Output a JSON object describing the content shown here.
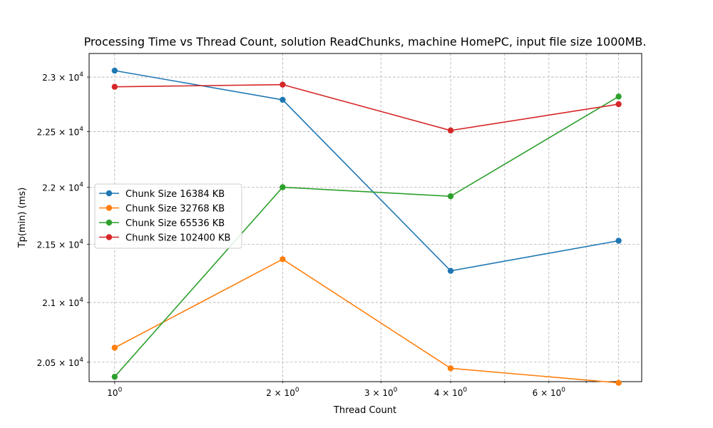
{
  "chart_data": {
    "type": "line",
    "title": "Processing Time vs Thread Count, solution ReadChunks, machine HomePC, input file size 1000MB.",
    "xlabel": "Thread Count",
    "ylabel": "Tp(min) (ms)",
    "xscale": "log",
    "yscale": "log",
    "grid": true,
    "legend_position": "center-left",
    "xlim": [
      0.9,
      8.8
    ],
    "ylim": [
      20340,
      23220
    ],
    "x": [
      1,
      2,
      4,
      8
    ],
    "xticks": [
      {
        "value": 1,
        "label": "10",
        "exp": "0",
        "prefix": ""
      },
      {
        "value": 2,
        "label": "2 × 10",
        "exp": "0",
        "prefix": "2 × "
      },
      {
        "value": 3,
        "label": "3 × 10",
        "exp": "0",
        "prefix": "3 × "
      },
      {
        "value": 4,
        "label": "4 × 10",
        "exp": "0",
        "prefix": "4 × "
      },
      {
        "value": 6,
        "label": "6 × 10",
        "exp": "0",
        "prefix": "6 × "
      }
    ],
    "xminor": [
      5,
      7,
      8
    ],
    "yticks": [
      {
        "value": 20500,
        "mant": "2.05 × 10",
        "exp": "4"
      },
      {
        "value": 21000,
        "mant": "2.1 × 10",
        "exp": "4"
      },
      {
        "value": 21500,
        "mant": "2.15 × 10",
        "exp": "4"
      },
      {
        "value": 22000,
        "mant": "2.2 × 10",
        "exp": "4"
      },
      {
        "value": 22500,
        "mant": "2.25 × 10",
        "exp": "4"
      },
      {
        "value": 23000,
        "mant": "2.3 × 10",
        "exp": "4"
      }
    ],
    "series": [
      {
        "name": "Chunk Size 16384 KB",
        "color": "#1f77b4",
        "values": [
          23060,
          22790,
          21270,
          21530
        ]
      },
      {
        "name": "Chunk Size 32768 KB",
        "color": "#ff7f0e",
        "values": [
          20620,
          21370,
          20450,
          20330
        ]
      },
      {
        "name": "Chunk Size 65536 KB",
        "color": "#2ca02c",
        "values": [
          20380,
          22000,
          21920,
          22820
        ]
      },
      {
        "name": "Chunk Size 102400 KB",
        "color": "#d62728",
        "values": [
          22910,
          22930,
          22510,
          22750
        ]
      }
    ]
  }
}
